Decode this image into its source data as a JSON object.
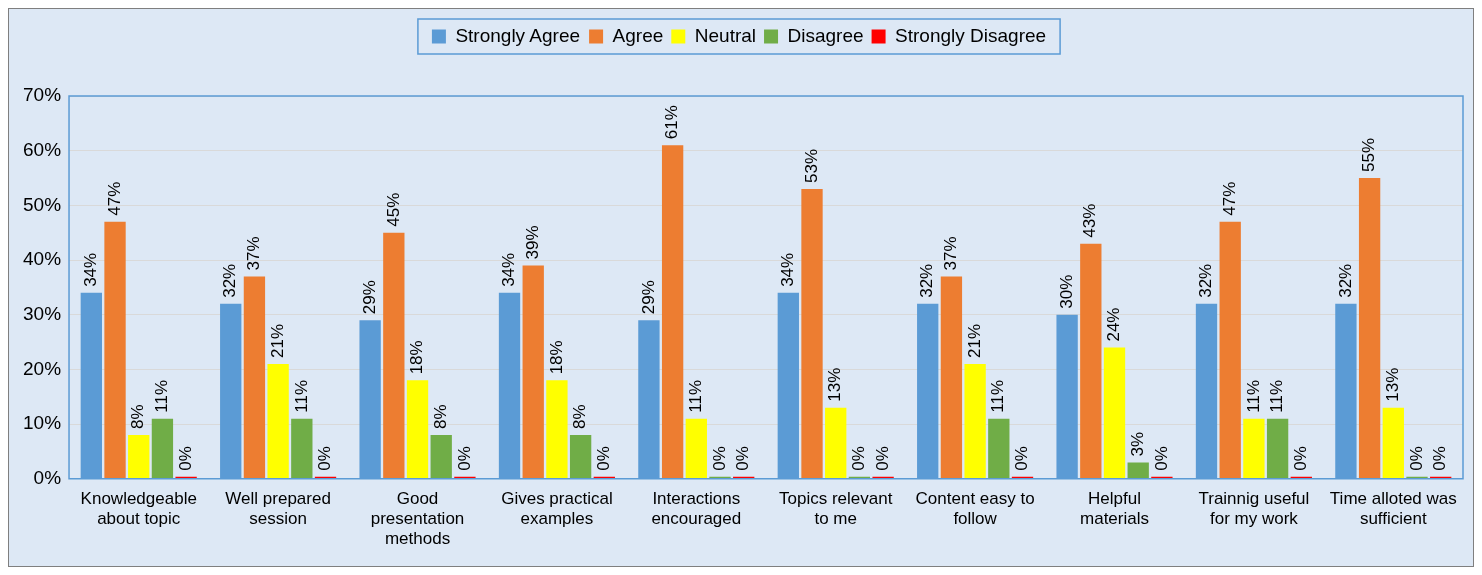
{
  "chart_data": {
    "type": "bar",
    "categories": [
      "Knowledgeable about topic",
      "Well prepared session",
      "Good presentation methods",
      "Gives practical examples",
      "Interactions encouraged",
      "Topics relevant to me",
      "Content easy to follow",
      "Helpful materials",
      "Trainnig useful for my work",
      "Time alloted was sufficient"
    ],
    "series": [
      {
        "name": "Strongly Agree",
        "color": "#5b9bd5",
        "values": [
          34,
          32,
          29,
          34,
          29,
          34,
          32,
          30,
          32,
          32
        ],
        "value_labels": [
          "34%",
          "32%",
          "29%",
          "34%",
          "29%",
          "34%",
          "32%",
          "30%",
          "32%",
          "32%"
        ]
      },
      {
        "name": "Agree",
        "color": "#ed7d31",
        "values": [
          47,
          37,
          45,
          39,
          61,
          53,
          37,
          43,
          47,
          55
        ],
        "value_labels": [
          "47%",
          "37%",
          "45%",
          "39%",
          "61%",
          "53%",
          "37%",
          "43%",
          "47%",
          "55%"
        ]
      },
      {
        "name": "Neutral",
        "color": "#ffff00",
        "values": [
          8,
          21,
          18,
          18,
          11,
          13,
          21,
          24,
          11,
          13
        ],
        "value_labels": [
          "8%",
          "21%",
          "18%",
          "18%",
          "11%",
          "13%",
          "21%",
          "24%",
          "11%",
          "13%"
        ]
      },
      {
        "name": "Disagree",
        "color": "#70ad47",
        "values": [
          11,
          11,
          8,
          8,
          0,
          0,
          11,
          3,
          11,
          0
        ],
        "value_labels": [
          "11%",
          "11%",
          "8%",
          "8%",
          "0%",
          "0%",
          "11%",
          "3%",
          "11%",
          "0%"
        ]
      },
      {
        "name": "Strongly Disagree",
        "color": "#ff0000",
        "values": [
          0,
          0,
          0,
          0,
          0,
          0,
          0,
          0,
          0,
          0
        ],
        "value_labels": [
          "0%",
          "0%",
          "0%",
          "0%",
          "0%",
          "0%",
          "0%",
          "0%",
          "0%",
          "0%"
        ]
      }
    ],
    "ylim": [
      0,
      70
    ],
    "yticks": [
      {
        "value": 0,
        "label": "0%"
      },
      {
        "value": 10,
        "label": "10%"
      },
      {
        "value": 20,
        "label": "20%"
      },
      {
        "value": 30,
        "label": "30%"
      },
      {
        "value": 40,
        "label": "40%"
      },
      {
        "value": 50,
        "label": "50%"
      },
      {
        "value": 60,
        "label": "60%"
      },
      {
        "value": 70,
        "label": "70%"
      }
    ],
    "grid": "y",
    "legend": "top"
  }
}
